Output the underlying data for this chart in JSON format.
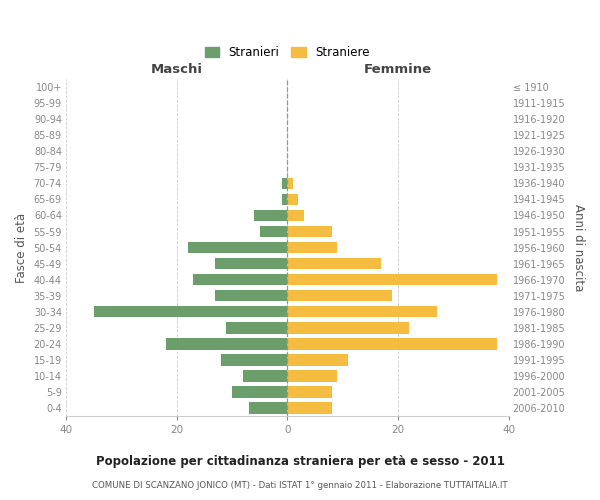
{
  "age_groups_bottom_to_top": [
    "0-4",
    "5-9",
    "10-14",
    "15-19",
    "20-24",
    "25-29",
    "30-34",
    "35-39",
    "40-44",
    "45-49",
    "50-54",
    "55-59",
    "60-64",
    "65-69",
    "70-74",
    "75-79",
    "80-84",
    "85-89",
    "90-94",
    "95-99",
    "100+"
  ],
  "birth_years_bottom_to_top": [
    "2006-2010",
    "2001-2005",
    "1996-2000",
    "1991-1995",
    "1986-1990",
    "1981-1985",
    "1976-1980",
    "1971-1975",
    "1966-1970",
    "1961-1965",
    "1956-1960",
    "1951-1955",
    "1946-1950",
    "1941-1945",
    "1936-1940",
    "1931-1935",
    "1926-1930",
    "1921-1925",
    "1916-1920",
    "1911-1915",
    "≤ 1910"
  ],
  "males_bottom_to_top": [
    7,
    10,
    8,
    12,
    22,
    11,
    35,
    13,
    17,
    13,
    18,
    5,
    6,
    1,
    1,
    0,
    0,
    0,
    0,
    0,
    0
  ],
  "females_bottom_to_top": [
    8,
    8,
    9,
    11,
    38,
    22,
    27,
    19,
    38,
    17,
    9,
    8,
    3,
    2,
    1,
    0,
    0,
    0,
    0,
    0,
    0
  ],
  "male_color": "#6b9e6b",
  "female_color": "#f5bc42",
  "title": "Popolazione per cittadinanza straniera per età e sesso - 2011",
  "subtitle": "COMUNE DI SCANZANO JONICO (MT) - Dati ISTAT 1° gennaio 2011 - Elaborazione TUTTAITALIA.IT",
  "left_label": "Maschi",
  "right_label": "Femmine",
  "y_left_label": "Fasce di età",
  "y_right_label": "Anni di nascita",
  "legend_male": "Stranieri",
  "legend_female": "Straniere",
  "xlim": 40,
  "background_color": "#ffffff",
  "grid_color": "#cccccc"
}
